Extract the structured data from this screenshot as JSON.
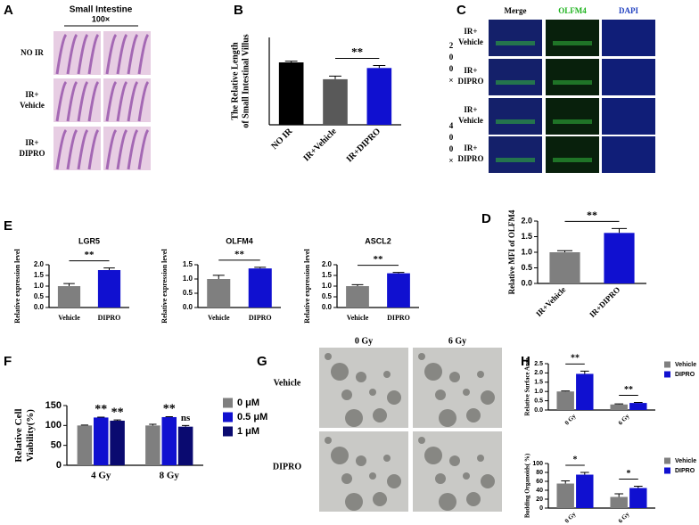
{
  "panel_labels": [
    "A",
    "B",
    "C",
    "D",
    "E",
    "F",
    "G",
    "H"
  ],
  "panel_a": {
    "title": "Small Intestine",
    "magnification": "100×",
    "rows": [
      [
        "NO IR"
      ],
      [
        "IR+",
        "Vehicle"
      ],
      [
        "IR+",
        "DIPRO"
      ]
    ]
  },
  "panel_c": {
    "columns": [
      "Merge",
      "OLFM4",
      "DAPI"
    ],
    "rows": [
      [
        "IR+",
        "Vehicle"
      ],
      [
        "IR+",
        "DIPRO"
      ],
      [
        "IR+",
        "Vehicle"
      ],
      [
        "IR+",
        "DIPRO"
      ]
    ],
    "magnifications": [
      [
        "2",
        "0",
        "0",
        "×"
      ],
      [
        "4",
        "0",
        "0",
        "×"
      ]
    ]
  },
  "panel_g": {
    "columns": [
      "0 Gy",
      "6 Gy"
    ],
    "rows": [
      "Vehicle",
      "DIPRO"
    ]
  },
  "chart_data": [
    {
      "type": "bar",
      "ylabel": [
        "The Relative Length",
        "of Small Intestinal Villus"
      ],
      "categories": [
        "NO IR",
        "IR+Vehicle",
        "IR+DIPRO"
      ],
      "values": [
        1.0,
        0.73,
        0.91
      ],
      "errors": [
        0.02,
        0.05,
        0.04
      ],
      "colors": [
        "#000000",
        "#595959",
        "#1010d0"
      ],
      "ylim": [
        0,
        1.4
      ],
      "annotations": [
        "**"
      ]
    },
    {
      "type": "bar",
      "title": "LGR5",
      "ylabel": [
        "Relative expression level"
      ],
      "categories": [
        "Vehicle",
        "DIPRO"
      ],
      "values": [
        1.0,
        1.75
      ],
      "errors": [
        0.12,
        0.1
      ],
      "colors": [
        "#7f7f7f",
        "#1010d0"
      ],
      "ylim": [
        0,
        2
      ],
      "yticks": [
        {
          "value": 0,
          "label": "0.0"
        },
        {
          "value": 0.5,
          "label": "0.5"
        },
        {
          "value": 1,
          "label": "1.0"
        },
        {
          "value": 1.5,
          "label": "1.5"
        },
        {
          "value": 2,
          "label": "2.0"
        }
      ],
      "annotations": [
        "**"
      ]
    },
    {
      "type": "bar",
      "title": "OLFM4",
      "ylabel": [
        "Relative expression level"
      ],
      "categories": [
        "Vehicle",
        "DIPRO"
      ],
      "values": [
        1.0,
        1.37
      ],
      "errors": [
        0.13,
        0.04
      ],
      "colors": [
        "#7f7f7f",
        "#1010d0"
      ],
      "ylim": [
        0,
        1.5
      ],
      "yticks": [
        {
          "value": 0,
          "label": "0.0"
        },
        {
          "value": 0.5,
          "label": "0.5"
        },
        {
          "value": 1,
          "label": "1.0"
        },
        {
          "value": 1.5,
          "label": "1.5"
        }
      ],
      "annotations": [
        "**"
      ]
    },
    {
      "type": "bar",
      "title": "ASCL2",
      "ylabel": [
        "Relative expression level"
      ],
      "categories": [
        "Vehicle",
        "DIPRO"
      ],
      "values": [
        1.0,
        1.6
      ],
      "errors": [
        0.07,
        0.04
      ],
      "colors": [
        "#7f7f7f",
        "#1010d0"
      ],
      "ylim": [
        0,
        2
      ],
      "yticks": [
        {
          "value": 0,
          "label": "0.0"
        },
        {
          "value": 0.5,
          "label": "0.5"
        },
        {
          "value": 1,
          "label": "1.0"
        },
        {
          "value": 1.5,
          "label": "1.5"
        },
        {
          "value": 2,
          "label": "2.0"
        }
      ],
      "annotations": [
        "**"
      ]
    },
    {
      "type": "bar",
      "ylabel": [
        "Relative MFI of OLFM4"
      ],
      "categories": [
        "IR+Vehicle",
        "IR+DIPRO"
      ],
      "values": [
        1.0,
        1.62
      ],
      "errors": [
        0.05,
        0.14
      ],
      "colors": [
        "#7f7f7f",
        "#1010d0"
      ],
      "ylim": [
        0,
        2
      ],
      "yticks": [
        {
          "value": 0,
          "label": "0.0"
        },
        {
          "value": 0.5,
          "label": "0.5"
        },
        {
          "value": 1,
          "label": "1.0"
        },
        {
          "value": 1.5,
          "label": "1.5"
        },
        {
          "value": 2,
          "label": "2.0"
        }
      ],
      "annotations": [
        "**"
      ]
    },
    {
      "type": "bar",
      "ylabel": [
        "Relative Cell",
        "Viability(%)"
      ],
      "categories": [
        "4 Gy",
        "8 Gy"
      ],
      "series": [
        {
          "name": "0 μM",
          "color": "#7f7f7f",
          "values": [
            100,
            100
          ],
          "errors": [
            1,
            3
          ]
        },
        {
          "name": "0.5 μM",
          "color": "#1010d0",
          "values": [
            120,
            121
          ],
          "errors": [
            1,
            1
          ]
        },
        {
          "name": "1 μM",
          "color": "#0a0a70",
          "values": [
            112,
            97
          ],
          "errors": [
            2,
            3
          ]
        }
      ],
      "ylim": [
        0,
        150
      ],
      "yticks": [
        0,
        50,
        100,
        150
      ],
      "annotations": [
        "**",
        "**",
        "**",
        "ns"
      ]
    },
    {
      "type": "bar",
      "ylabel": [
        "Relative Surface Area"
      ],
      "categories": [
        "0 Gy",
        "6 Gy"
      ],
      "series": [
        {
          "name": "Vehicle",
          "color": "#7f7f7f",
          "values": [
            1.0,
            0.3
          ],
          "errors": [
            0.03,
            0.03
          ]
        },
        {
          "name": "DIPRO",
          "color": "#1010d0",
          "values": [
            1.95,
            0.38
          ],
          "errors": [
            0.15,
            0.03
          ]
        }
      ],
      "ylim": [
        0,
        2.5
      ],
      "yticks": [
        {
          "value": 0,
          "label": "0.0"
        },
        {
          "value": 0.5,
          "label": "0.5"
        },
        {
          "value": 1,
          "label": "1.0"
        },
        {
          "value": 1.5,
          "label": "1.5"
        },
        {
          "value": 2,
          "label": "2.0"
        },
        {
          "value": 2.5,
          "label": "2.5"
        }
      ],
      "annotations": [
        "**",
        "**"
      ]
    },
    {
      "type": "bar",
      "ylabel": [
        "Budding Organoids( %)"
      ],
      "categories": [
        "0 Gy",
        "6 Gy"
      ],
      "series": [
        {
          "name": "Vehicle",
          "color": "#7f7f7f",
          "values": [
            55,
            25
          ],
          "errors": [
            6,
            7
          ]
        },
        {
          "name": "DIPRO",
          "color": "#1010d0",
          "values": [
            75,
            45
          ],
          "errors": [
            5,
            4
          ]
        }
      ],
      "ylim": [
        0,
        100
      ],
      "yticks": [
        0,
        20,
        40,
        60,
        80,
        100
      ],
      "annotations": [
        "*",
        "*"
      ]
    }
  ]
}
